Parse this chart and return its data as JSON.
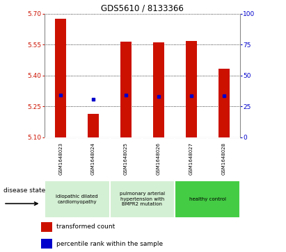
{
  "title": "GDS5610 / 8133366",
  "samples": [
    "GSM1648023",
    "GSM1648024",
    "GSM1648025",
    "GSM1648026",
    "GSM1648027",
    "GSM1648028"
  ],
  "bar_bottoms": [
    5.1,
    5.1,
    5.1,
    5.1,
    5.1,
    5.1
  ],
  "bar_tops": [
    5.675,
    5.215,
    5.565,
    5.56,
    5.568,
    5.435
  ],
  "percentile_values": [
    5.305,
    5.285,
    5.305,
    5.3,
    5.303,
    5.303
  ],
  "ylim_left": [
    5.1,
    5.7
  ],
  "ylim_right": [
    0,
    100
  ],
  "yticks_left": [
    5.1,
    5.25,
    5.4,
    5.55,
    5.7
  ],
  "yticks_right": [
    0,
    25,
    50,
    75,
    100
  ],
  "bar_color": "#cc1100",
  "percentile_color": "#0000cc",
  "bg_color": "#ffffff",
  "plot_bg": "#ffffff",
  "grid_color": "#000000",
  "disease_groups": [
    {
      "label": "idiopathic dilated\ncardiomyopathy",
      "cols": [
        0,
        1
      ],
      "bg": "#d4f0d4"
    },
    {
      "label": "pulmonary arterial\nhypertension with\nBMPR2 mutation",
      "cols": [
        2,
        3
      ],
      "bg": "#d4f0d4"
    },
    {
      "label": "healthy control",
      "cols": [
        4,
        5
      ],
      "bg": "#44cc44"
    }
  ],
  "legend_bar_label": "transformed count",
  "legend_pct_label": "percentile rank within the sample",
  "disease_state_label": "disease state",
  "tick_color_left": "#cc1100",
  "tick_color_right": "#0000cc",
  "bar_width": 0.35,
  "sample_label_bg": "#c8c8c8",
  "cell_border_color": "#ffffff"
}
